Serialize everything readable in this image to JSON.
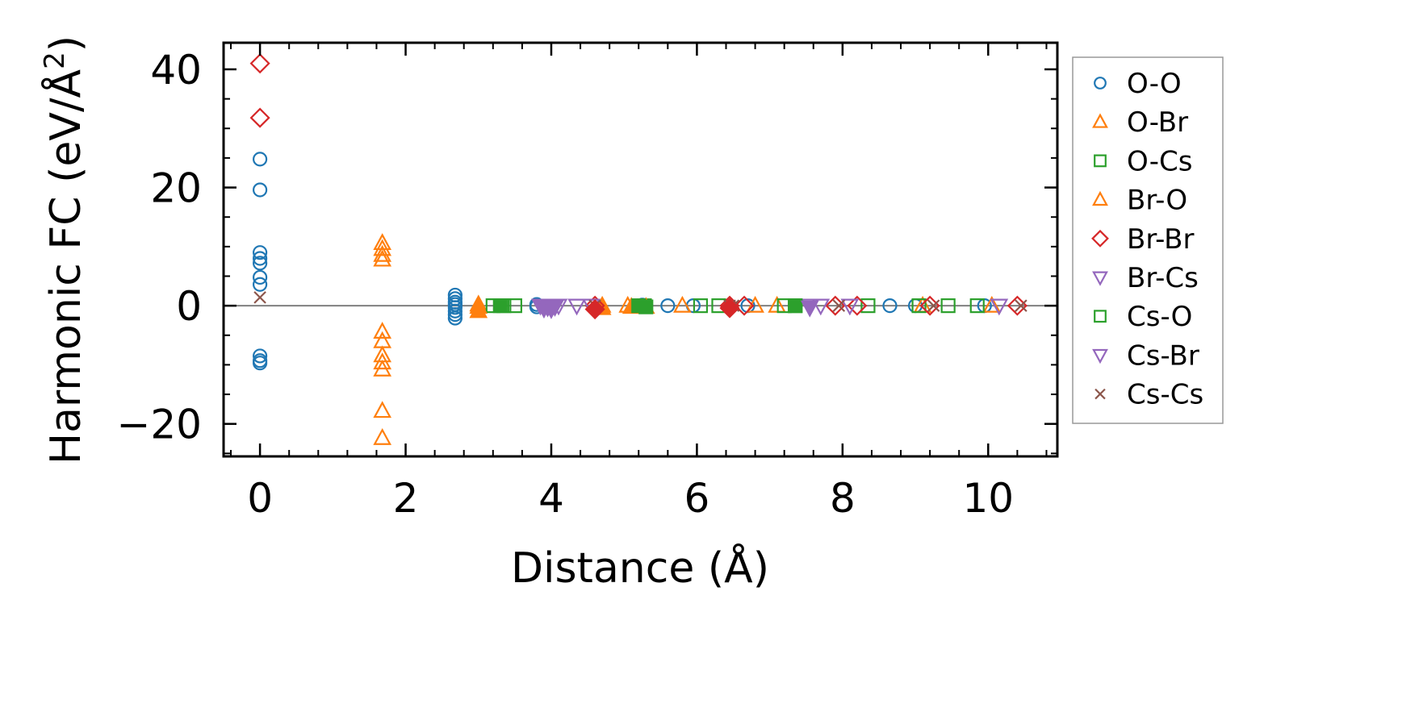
{
  "chart_data": {
    "type": "scatter",
    "title": "",
    "xlabel": "Distance (Å)",
    "ylabel": "Harmonic FC (eV/Å²)",
    "ylabel_parts": {
      "main": "Harmonic FC (eV/Å",
      "sup": "2",
      "close": ")"
    },
    "xlim": [
      -0.5,
      10.95
    ],
    "ylim": [
      -25.5,
      44.5
    ],
    "x_ticks": [
      0,
      2,
      4,
      6,
      8,
      10
    ],
    "x_tick_labels": [
      "0",
      "2",
      "4",
      "6",
      "8",
      "10"
    ],
    "y_ticks": [
      -20,
      0,
      20,
      40
    ],
    "y_tick_labels": [
      "−20",
      "0",
      "20",
      "40"
    ],
    "zero_line": true,
    "legend_position": "outside-right",
    "series": [
      {
        "name": "O-O",
        "color": "#1f77b4",
        "marker": "circle",
        "filled": false,
        "points": [
          [
            0,
            24.8
          ],
          [
            0,
            19.6
          ],
          [
            0,
            9.0
          ],
          [
            0,
            8.0
          ],
          [
            0,
            7.2
          ],
          [
            0,
            4.8
          ],
          [
            0,
            3.6
          ],
          [
            0,
            -8.5
          ],
          [
            0,
            -9.3
          ],
          [
            0,
            -9.7
          ],
          [
            2.68,
            1.8
          ],
          [
            2.68,
            1.2
          ],
          [
            2.68,
            0.6
          ],
          [
            2.68,
            0.2
          ],
          [
            2.68,
            -0.3
          ],
          [
            2.68,
            -0.9
          ],
          [
            2.68,
            -1.5
          ],
          [
            2.68,
            -2.1
          ],
          [
            3.8,
            0.2
          ],
          [
            3.8,
            -0.2
          ],
          [
            5.25,
            0.1
          ],
          [
            5.6,
            0.0
          ],
          [
            5.95,
            0.0
          ],
          [
            6.7,
            0.0
          ],
          [
            8.65,
            0.0
          ],
          [
            9.0,
            0.0
          ],
          [
            9.95,
            0.0
          ]
        ]
      },
      {
        "name": "O-Br",
        "color": "#ff7f0e",
        "marker": "triangle-up",
        "filled": false,
        "points": [
          [
            1.68,
            10.6
          ],
          [
            1.68,
            9.6
          ],
          [
            1.68,
            8.6
          ],
          [
            1.68,
            7.8
          ],
          [
            1.68,
            -4.4
          ],
          [
            1.68,
            -6.0
          ],
          [
            1.68,
            -8.4
          ],
          [
            1.68,
            -9.6
          ],
          [
            1.68,
            -10.8
          ],
          [
            1.68,
            -17.8
          ],
          [
            1.68,
            -22.4
          ],
          [
            3.0,
            0.2
          ],
          [
            4.7,
            0.0
          ],
          [
            5.05,
            0.0
          ],
          [
            5.8,
            0.0
          ],
          [
            6.8,
            0.0
          ],
          [
            7.1,
            0.0
          ],
          [
            9.1,
            0.0
          ],
          [
            10.05,
            0.0
          ]
        ]
      },
      {
        "name": "O-Cs",
        "color": "#2ca02c",
        "marker": "square",
        "filled": false,
        "points": [
          [
            3.2,
            0.0
          ],
          [
            3.35,
            0.0
          ],
          [
            3.5,
            0.0
          ],
          [
            5.28,
            0.0
          ],
          [
            6.05,
            0.0
          ],
          [
            6.3,
            0.0
          ],
          [
            7.2,
            0.0
          ],
          [
            7.35,
            0.0
          ],
          [
            8.35,
            0.0
          ],
          [
            9.05,
            0.0
          ],
          [
            9.45,
            0.0
          ],
          [
            9.85,
            0.0
          ]
        ]
      },
      {
        "name": "Br-O",
        "color": "#ff7f0e",
        "marker": "triangle-up",
        "filled": true,
        "points": [
          [
            3.0,
            -0.2
          ],
          [
            3.0,
            -0.9
          ],
          [
            4.7,
            -0.4
          ],
          [
            5.1,
            -0.2
          ],
          [
            5.3,
            -0.2
          ]
        ]
      },
      {
        "name": "Br-Br",
        "color": "#d62728",
        "marker": "diamond",
        "filled": false,
        "points": [
          [
            0,
            41.0
          ],
          [
            0,
            31.8
          ],
          [
            4.6,
            0.0
          ],
          [
            6.45,
            0.0
          ],
          [
            6.65,
            0.0
          ],
          [
            7.9,
            0.0
          ],
          [
            8.2,
            0.0
          ],
          [
            9.2,
            0.0
          ],
          [
            10.4,
            0.0
          ]
        ]
      },
      {
        "name": "Br-Cs",
        "color": "#9467bd",
        "marker": "triangle-down",
        "filled": false,
        "points": [
          [
            3.9,
            0.0
          ],
          [
            4.1,
            0.0
          ],
          [
            4.35,
            0.0
          ],
          [
            4.55,
            0.0
          ],
          [
            7.55,
            0.0
          ],
          [
            7.7,
            0.0
          ],
          [
            8.1,
            0.0
          ],
          [
            10.15,
            0.0
          ]
        ]
      },
      {
        "name": "Cs-O",
        "color": "#2ca02c",
        "marker": "square",
        "filled": true,
        "points": [
          [
            3.3,
            0.0
          ],
          [
            5.2,
            0.0
          ],
          [
            5.3,
            -0.2
          ],
          [
            7.35,
            0.0
          ]
        ]
      },
      {
        "name": "Cs-Br",
        "color": "#9467bd",
        "marker": "triangle-down",
        "filled": true,
        "points": [
          [
            3.85,
            0.0
          ],
          [
            3.9,
            -0.5
          ],
          [
            3.95,
            -0.3
          ],
          [
            4.0,
            -0.6
          ],
          [
            4.05,
            -0.2
          ],
          [
            7.55,
            -0.3
          ]
        ]
      },
      {
        "name": "Cs-Cs",
        "color": "#8c564b",
        "marker": "x",
        "filled": false,
        "points": [
          [
            0,
            1.4
          ],
          [
            4.6,
            0.0
          ],
          [
            6.45,
            0.0
          ],
          [
            6.5,
            0.0
          ],
          [
            7.95,
            0.0
          ],
          [
            9.25,
            0.0
          ],
          [
            10.45,
            0.0
          ]
        ]
      }
    ],
    "filled_markers": [
      {
        "series": "Br-Br",
        "color": "#d62728",
        "marker": "diamond",
        "points": [
          [
            4.6,
            -0.6
          ],
          [
            6.45,
            -0.4
          ]
        ]
      }
    ]
  }
}
